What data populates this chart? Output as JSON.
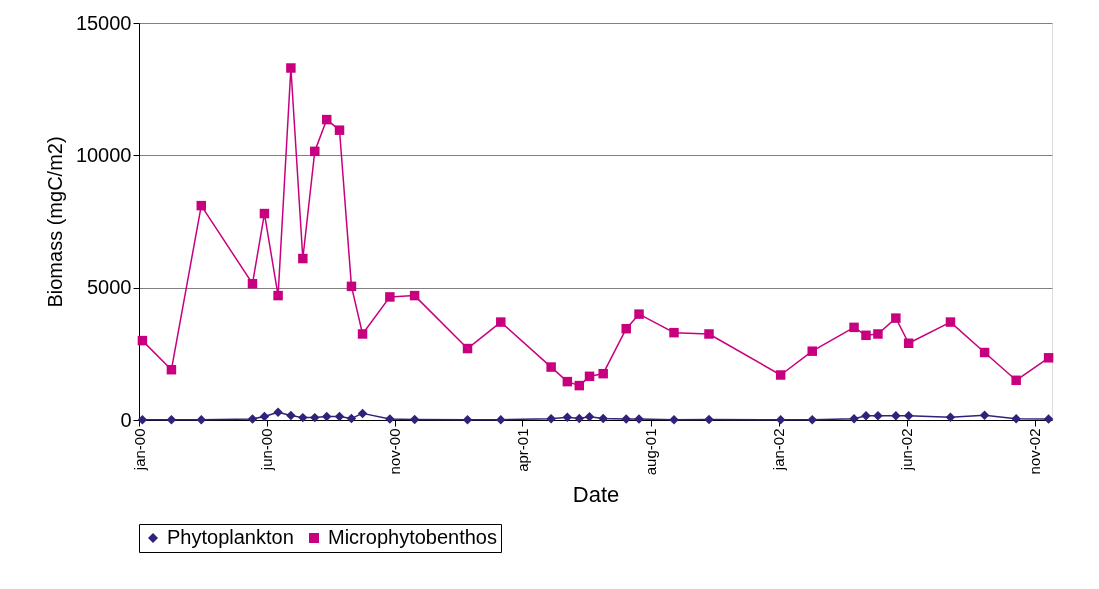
{
  "chart_data": {
    "type": "line",
    "xlabel": "Date",
    "ylabel": "Biomass (mgC/m2)",
    "ylim": [
      0,
      15000
    ],
    "yticks": [
      0,
      5000,
      10000,
      15000
    ],
    "xlim": [
      "2000-01-09",
      "2002-12-14"
    ],
    "xticks": [
      {
        "value": "2000-01-09",
        "label": "jan-00"
      },
      {
        "value": "2000-06-07",
        "label": "jun-00"
      },
      {
        "value": "2000-11-04",
        "label": "nov-00"
      },
      {
        "value": "2001-04-02",
        "label": "apr-01"
      },
      {
        "value": "2001-08-31",
        "label": "aug-01"
      },
      {
        "value": "2002-01-28",
        "label": "jan-02"
      },
      {
        "value": "2002-06-27",
        "label": "jun-02"
      },
      {
        "value": "2002-11-24",
        "label": "nov-02"
      }
    ],
    "x": [
      "2000-01-13",
      "2000-02-16",
      "2000-03-22",
      "2000-05-21",
      "2000-06-04",
      "2000-06-20",
      "2000-07-05",
      "2000-07-19",
      "2000-08-02",
      "2000-08-16",
      "2000-08-31",
      "2000-09-14",
      "2000-09-27",
      "2000-10-29",
      "2000-11-27",
      "2001-01-28",
      "2001-03-08",
      "2001-05-06",
      "2001-05-25",
      "2001-06-08",
      "2001-06-20",
      "2001-07-06",
      "2001-08-02",
      "2001-08-17",
      "2001-09-27",
      "2001-11-07",
      "2002-01-30",
      "2002-03-08",
      "2002-04-26",
      "2002-05-10",
      "2002-05-24",
      "2002-06-14",
      "2002-06-29",
      "2002-08-17",
      "2002-09-26",
      "2002-11-02",
      "2002-12-10"
    ],
    "series": [
      {
        "name": "Phytoplankton",
        "color": "#33207a",
        "marker": "diamond",
        "values": [
          10,
          10,
          10,
          40,
          130,
          290,
          170,
          90,
          90,
          130,
          130,
          60,
          250,
          40,
          20,
          10,
          10,
          50,
          100,
          60,
          120,
          60,
          40,
          40,
          10,
          20,
          10,
          10,
          50,
          160,
          160,
          160,
          160,
          100,
          180,
          50,
          40
        ]
      },
      {
        "name": "Microphytobenthos",
        "color": "#c8007f",
        "marker": "square",
        "values": [
          3000,
          1900,
          8100,
          5150,
          7800,
          4700,
          13300,
          6100,
          10150,
          11350,
          10950,
          5050,
          3250,
          4650,
          4700,
          2700,
          3700,
          2000,
          1450,
          1300,
          1650,
          1750,
          3450,
          4000,
          3300,
          3250,
          1700,
          2600,
          3500,
          3200,
          3250,
          3850,
          2900,
          3700,
          2550,
          1500,
          2350
        ]
      }
    ],
    "grid": "y",
    "legend": "bottom",
    "line_style": "solid"
  }
}
